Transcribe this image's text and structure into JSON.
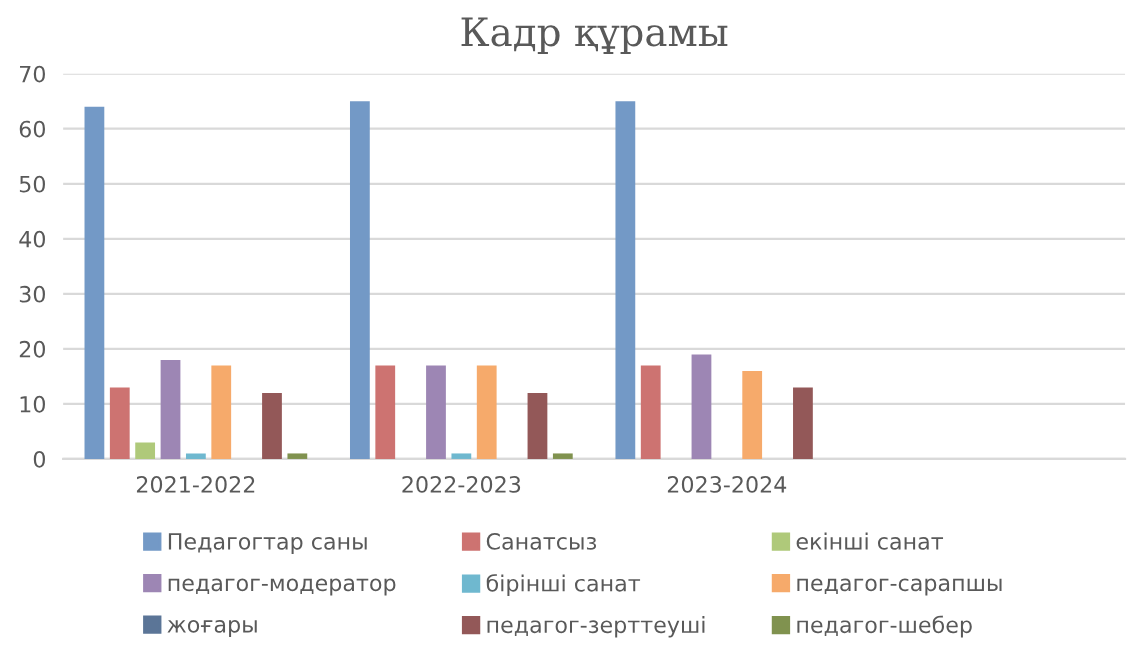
{
  "chart_data": {
    "type": "bar",
    "title": "Кадр құрамы",
    "categories": [
      "2021-2022",
      "2022-2023",
      "2023-2024",
      null
    ],
    "series": [
      {
        "name": "Педагогтар саны",
        "color": "#7399c6",
        "values": [
          64,
          65,
          65,
          null
        ]
      },
      {
        "name": "Санатсыз",
        "color": "#cd7371",
        "values": [
          13,
          17,
          17,
          null
        ]
      },
      {
        "name": "екінші санат",
        "color": "#afc97a",
        "values": [
          3,
          null,
          null,
          null
        ]
      },
      {
        "name": "педагог-модератор",
        "color": "#9d86b4",
        "values": [
          18,
          17,
          19,
          null
        ]
      },
      {
        "name": "бірінші санат",
        "color": "#6fb8cf",
        "values": [
          1,
          1,
          null,
          null
        ]
      },
      {
        "name": "педагог-сарапшы",
        "color": "#f6aa6b",
        "values": [
          17,
          17,
          16,
          null
        ]
      },
      {
        "name": "жоғары",
        "color": "#5b7597",
        "values": [
          null,
          null,
          null,
          null
        ]
      },
      {
        "name": "педагог-зерттеуші",
        "color": "#935858",
        "values": [
          12,
          12,
          13,
          null
        ]
      },
      {
        "name": "педагог-шебер",
        "color": "#80924f",
        "values": [
          1,
          1,
          null,
          null
        ]
      }
    ],
    "ylim": [
      0,
      70
    ],
    "yticks": [
      0,
      10,
      20,
      30,
      40,
      50,
      60,
      70
    ],
    "grid": "y",
    "legend": "bottom"
  }
}
